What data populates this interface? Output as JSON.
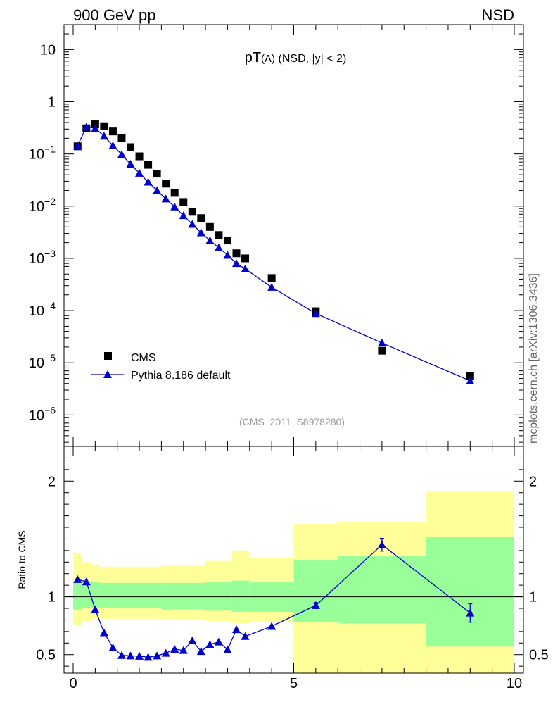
{
  "header": {
    "left": "900 GeV pp",
    "right": "NSD"
  },
  "side_label": "mcplots.cern.ch [arXiv:1306.3436]",
  "chart_data": [
    {
      "type": "scatter",
      "title": "pT(Λ) (NSD, |y| < 2)",
      "title_main": "pT",
      "title_paren": "(Λ)",
      "title_rest": " (NSD, |y| < 2)",
      "watermark": "(CMS_2011_S8978280)",
      "xlim": [
        0,
        10
      ],
      "ylim": [
        2.5e-07,
        30
      ],
      "yscale": "log",
      "y_ticks": [
        {
          "v": 1e-06,
          "base": "10",
          "exp": "−6"
        },
        {
          "v": 1e-05,
          "base": "10",
          "exp": "−5"
        },
        {
          "v": 0.0001,
          "base": "10",
          "exp": "−4"
        },
        {
          "v": 0.001,
          "base": "10",
          "exp": "−3"
        },
        {
          "v": 0.01,
          "base": "10",
          "exp": "−2"
        },
        {
          "v": 0.1,
          "base": "10",
          "exp": "−1"
        },
        {
          "v": 1,
          "base": "1",
          "exp": ""
        },
        {
          "v": 10,
          "base": "10",
          "exp": ""
        }
      ],
      "legend_position": "bottom-left",
      "series": [
        {
          "name": "CMS",
          "marker": "square",
          "color": "#000000",
          "x": [
            0.1,
            0.3,
            0.5,
            0.7,
            0.9,
            1.1,
            1.3,
            1.5,
            1.7,
            1.9,
            2.1,
            2.3,
            2.5,
            2.7,
            2.9,
            3.1,
            3.3,
            3.5,
            3.7,
            3.9,
            4.5,
            5.5,
            7.0,
            9.0
          ],
          "y": [
            0.14,
            0.31,
            0.37,
            0.34,
            0.27,
            0.2,
            0.135,
            0.09,
            0.062,
            0.042,
            0.027,
            0.018,
            0.012,
            0.0078,
            0.0059,
            0.004,
            0.0028,
            0.0022,
            0.00125,
            0.001,
            0.00042,
            9.7e-05,
            1.7e-05,
            5.5e-06
          ]
        },
        {
          "name": "Pythia 8.186 default",
          "marker": "triangle",
          "color": "#0000cc",
          "x": [
            0.1,
            0.3,
            0.5,
            0.7,
            0.9,
            1.1,
            1.3,
            1.5,
            1.7,
            1.9,
            2.1,
            2.3,
            2.5,
            2.7,
            2.9,
            3.1,
            3.3,
            3.5,
            3.7,
            3.9,
            4.5,
            5.5,
            7.0,
            9.0
          ],
          "y": [
            0.145,
            0.33,
            0.31,
            0.22,
            0.145,
            0.098,
            0.064,
            0.043,
            0.029,
            0.02,
            0.0138,
            0.0097,
            0.0066,
            0.0045,
            0.0031,
            0.0022,
            0.0016,
            0.00115,
            0.0008,
            0.00063,
            0.00028,
            8.8e-05,
            2.4e-05,
            4.5e-06
          ]
        }
      ]
    },
    {
      "type": "line",
      "ylabel": "Ratio to CMS",
      "xlim": [
        0,
        10
      ],
      "ylim": [
        0.34,
        2.3
      ],
      "x_ticks": [
        "0",
        "5",
        "10"
      ],
      "y_ticks": [
        "0.5",
        "1",
        "2"
      ],
      "reference_line": 1,
      "uncertainty_bands": [
        {
          "x0": 0.0,
          "x1": 0.2,
          "inner": [
            0.89,
            1.12
          ],
          "outer": [
            0.75,
            1.38
          ]
        },
        {
          "x0": 0.2,
          "x1": 0.4,
          "inner": [
            0.9,
            1.13
          ],
          "outer": [
            0.79,
            1.3
          ]
        },
        {
          "x0": 0.4,
          "x1": 0.6,
          "inner": [
            0.9,
            1.13
          ],
          "outer": [
            0.8,
            1.28
          ]
        },
        {
          "x0": 0.6,
          "x1": 2.0,
          "inner": [
            0.9,
            1.12
          ],
          "outer": [
            0.81,
            1.26
          ]
        },
        {
          "x0": 2.0,
          "x1": 3.0,
          "inner": [
            0.89,
            1.12
          ],
          "outer": [
            0.8,
            1.27
          ]
        },
        {
          "x0": 3.0,
          "x1": 3.6,
          "inner": [
            0.88,
            1.13
          ],
          "outer": [
            0.79,
            1.31
          ]
        },
        {
          "x0": 3.6,
          "x1": 4.0,
          "inner": [
            0.87,
            1.14
          ],
          "outer": [
            0.77,
            1.4
          ]
        },
        {
          "x0": 4.0,
          "x1": 5.0,
          "inner": [
            0.87,
            1.13
          ],
          "outer": [
            0.78,
            1.34
          ]
        },
        {
          "x0": 5.0,
          "x1": 6.0,
          "inner": [
            0.78,
            1.32
          ],
          "outer": [
            0.34,
            1.63
          ]
        },
        {
          "x0": 6.0,
          "x1": 8.0,
          "inner": [
            0.77,
            1.35
          ],
          "outer": [
            0.34,
            1.65
          ]
        },
        {
          "x0": 8.0,
          "x1": 10.0,
          "inner": [
            0.57,
            1.52
          ],
          "outer": [
            0.34,
            1.91
          ]
        }
      ],
      "series": [
        {
          "name": "Pythia 8.186 default",
          "color": "#0000cc",
          "x": [
            0.1,
            0.3,
            0.5,
            0.7,
            0.9,
            1.1,
            1.3,
            1.5,
            1.7,
            1.9,
            2.1,
            2.3,
            2.5,
            2.7,
            2.9,
            3.1,
            3.3,
            3.5,
            3.7,
            3.9,
            4.5,
            5.5,
            7.0,
            9.0
          ],
          "y": [
            1.15,
            1.13,
            0.89,
            0.69,
            0.56,
            0.494,
            0.49,
            0.487,
            0.478,
            0.49,
            0.513,
            0.547,
            0.537,
            0.62,
            0.528,
            0.588,
            0.61,
            0.544,
            0.717,
            0.658,
            0.745,
            0.925,
            1.45,
            0.86
          ],
          "err": [
            0,
            0,
            0,
            0,
            0,
            0,
            0,
            0,
            0,
            0,
            0,
            0,
            0,
            0,
            0,
            0,
            0,
            0,
            0,
            0,
            0,
            0.025,
            0.055,
            0.08
          ]
        }
      ]
    }
  ]
}
